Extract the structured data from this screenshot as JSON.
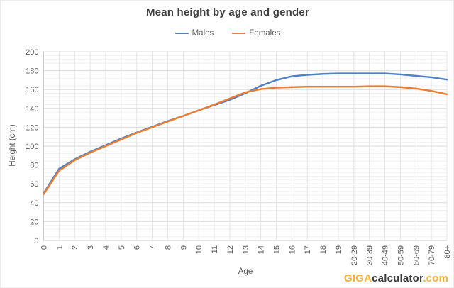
{
  "chart_data": {
    "type": "line",
    "title": "Mean height by age and gender",
    "xlabel": "Age",
    "ylabel": "Height (cm)",
    "ylim": [
      0,
      200
    ],
    "y_major_step": 20,
    "y_minor_step": 4,
    "grid": "major-and-minor-horizontal, major-vertical",
    "legend_position": "top-center",
    "categories": [
      "0",
      "1",
      "2",
      "3",
      "4",
      "5",
      "6",
      "7",
      "8",
      "9",
      "10",
      "11",
      "12",
      "13",
      "14",
      "15",
      "16",
      "17",
      "18",
      "19",
      "20-29",
      "30-39",
      "40-49",
      "50-59",
      "60-69",
      "70-79",
      "80+"
    ],
    "series": [
      {
        "name": "Males",
        "color": "#4E81C7",
        "values": [
          50,
          76,
          86,
          94,
          101,
          108,
          114.5,
          120.5,
          126.5,
          132,
          138,
          143.5,
          149,
          156,
          164,
          170,
          174,
          175.5,
          176.5,
          177,
          177,
          177,
          177,
          176,
          174.5,
          173,
          170.5
        ]
      },
      {
        "name": "Females",
        "color": "#ED7D31",
        "values": [
          49,
          74,
          85,
          93,
          100,
          107,
          114,
          120,
          126,
          132,
          138,
          144,
          150.5,
          157,
          160.5,
          162,
          162.5,
          163,
          163,
          163,
          163,
          163.5,
          163.5,
          162.5,
          161,
          158.5,
          155
        ]
      }
    ],
    "colors": {
      "axis_line": "#c6c6c6",
      "major_grid": "#dbdbdb",
      "minor_grid": "#f1f1f1",
      "vertical_grid": "#e4e4e4",
      "tick_label": "#595959"
    }
  },
  "watermark": {
    "part_giga": "GIGA",
    "part_calculator": "calculator",
    "part_tld": ".com",
    "brand_yellow": "#F9B234",
    "brand_dark": "#3C3C3C"
  }
}
